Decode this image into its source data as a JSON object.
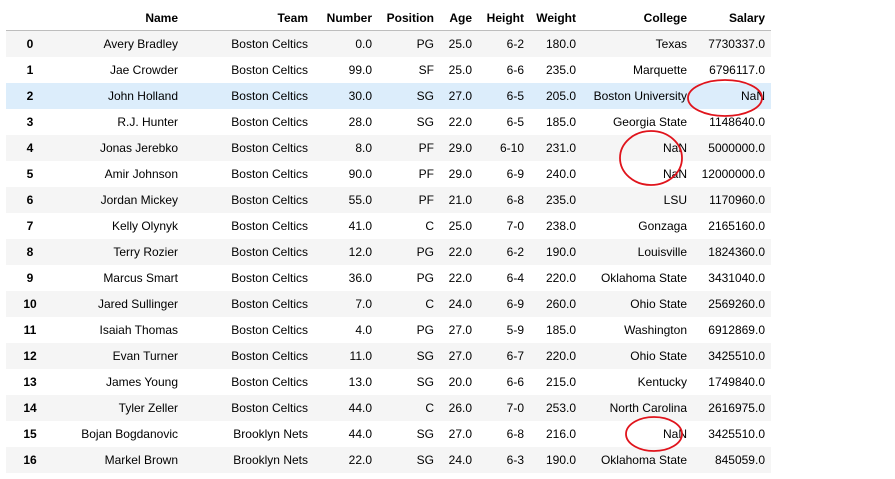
{
  "table": {
    "columns": [
      "",
      "Name",
      "Team",
      "Number",
      "Position",
      "Age",
      "Height",
      "Weight",
      "College",
      "Salary"
    ],
    "rows": [
      {
        "index": "0",
        "cells": [
          "Avery Bradley",
          "Boston Celtics",
          "0.0",
          "PG",
          "25.0",
          "6-2",
          "180.0",
          "Texas",
          "7730337.0"
        ]
      },
      {
        "index": "1",
        "cells": [
          "Jae Crowder",
          "Boston Celtics",
          "99.0",
          "SF",
          "25.0",
          "6-6",
          "235.0",
          "Marquette",
          "6796117.0"
        ]
      },
      {
        "index": "2",
        "cells": [
          "John Holland",
          "Boston Celtics",
          "30.0",
          "SG",
          "27.0",
          "6-5",
          "205.0",
          "Boston University",
          "NaN"
        ]
      },
      {
        "index": "3",
        "cells": [
          "R.J. Hunter",
          "Boston Celtics",
          "28.0",
          "SG",
          "22.0",
          "6-5",
          "185.0",
          "Georgia State",
          "1148640.0"
        ]
      },
      {
        "index": "4",
        "cells": [
          "Jonas Jerebko",
          "Boston Celtics",
          "8.0",
          "PF",
          "29.0",
          "6-10",
          "231.0",
          "NaN",
          "5000000.0"
        ]
      },
      {
        "index": "5",
        "cells": [
          "Amir Johnson",
          "Boston Celtics",
          "90.0",
          "PF",
          "29.0",
          "6-9",
          "240.0",
          "NaN",
          "12000000.0"
        ]
      },
      {
        "index": "6",
        "cells": [
          "Jordan Mickey",
          "Boston Celtics",
          "55.0",
          "PF",
          "21.0",
          "6-8",
          "235.0",
          "LSU",
          "1170960.0"
        ]
      },
      {
        "index": "7",
        "cells": [
          "Kelly Olynyk",
          "Boston Celtics",
          "41.0",
          "C",
          "25.0",
          "7-0",
          "238.0",
          "Gonzaga",
          "2165160.0"
        ]
      },
      {
        "index": "8",
        "cells": [
          "Terry Rozier",
          "Boston Celtics",
          "12.0",
          "PG",
          "22.0",
          "6-2",
          "190.0",
          "Louisville",
          "1824360.0"
        ]
      },
      {
        "index": "9",
        "cells": [
          "Marcus Smart",
          "Boston Celtics",
          "36.0",
          "PG",
          "22.0",
          "6-4",
          "220.0",
          "Oklahoma State",
          "3431040.0"
        ]
      },
      {
        "index": "10",
        "cells": [
          "Jared Sullinger",
          "Boston Celtics",
          "7.0",
          "C",
          "24.0",
          "6-9",
          "260.0",
          "Ohio State",
          "2569260.0"
        ]
      },
      {
        "index": "11",
        "cells": [
          "Isaiah Thomas",
          "Boston Celtics",
          "4.0",
          "PG",
          "27.0",
          "5-9",
          "185.0",
          "Washington",
          "6912869.0"
        ]
      },
      {
        "index": "12",
        "cells": [
          "Evan Turner",
          "Boston Celtics",
          "11.0",
          "SG",
          "27.0",
          "6-7",
          "220.0",
          "Ohio State",
          "3425510.0"
        ]
      },
      {
        "index": "13",
        "cells": [
          "James Young",
          "Boston Celtics",
          "13.0",
          "SG",
          "20.0",
          "6-6",
          "215.0",
          "Kentucky",
          "1749840.0"
        ]
      },
      {
        "index": "14",
        "cells": [
          "Tyler Zeller",
          "Boston Celtics",
          "44.0",
          "C",
          "26.0",
          "7-0",
          "253.0",
          "North Carolina",
          "2616975.0"
        ]
      },
      {
        "index": "15",
        "cells": [
          "Bojan Bogdanovic",
          "Brooklyn Nets",
          "44.0",
          "SG",
          "27.0",
          "6-8",
          "216.0",
          "NaN",
          "3425510.0"
        ]
      },
      {
        "index": "16",
        "cells": [
          "Markel Brown",
          "Brooklyn Nets",
          "22.0",
          "SG",
          "24.0",
          "6-3",
          "190.0",
          "Oklahoma State",
          "845059.0"
        ]
      }
    ]
  },
  "colors": {
    "highlight_row": "#dcedfb",
    "annotation": "#e0141c",
    "stripe": "#f5f5f5"
  }
}
